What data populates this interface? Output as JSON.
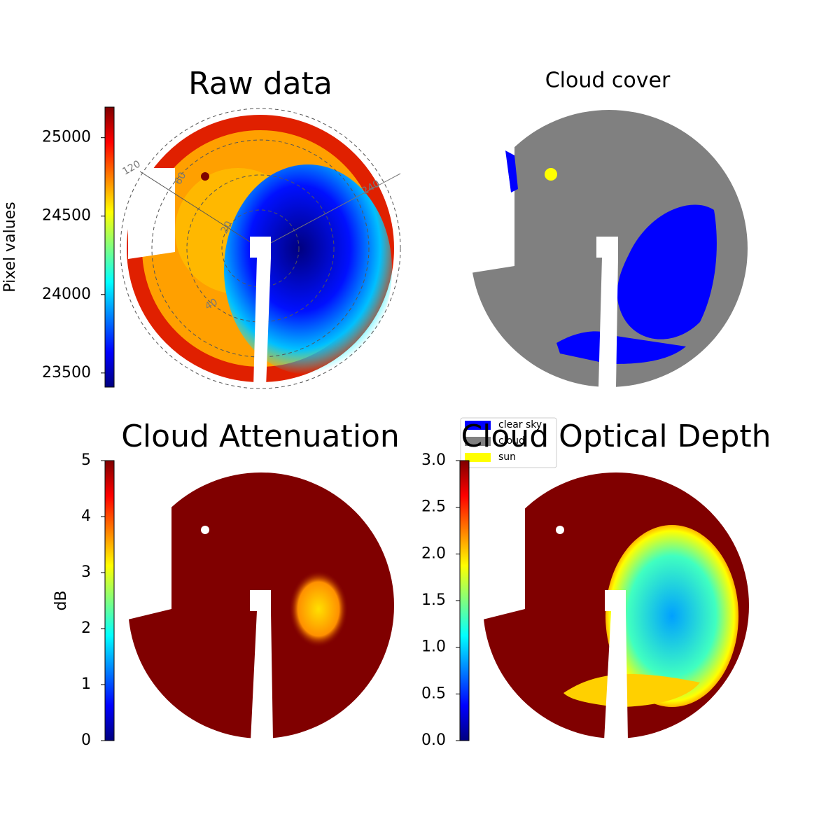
{
  "chart_data": [
    {
      "type": "image",
      "title": "Raw data",
      "colorbar_label": "Pixel values",
      "colormap": "jet",
      "clim": [
        23410,
        25195
      ],
      "cticks": [
        23500,
        24000,
        24500,
        25000
      ],
      "annotations": [
        "120",
        "60",
        "20",
        "40",
        "240"
      ]
    },
    {
      "type": "image",
      "title": "Cloud cover",
      "legend": "lower left",
      "series": [
        {
          "name": "clear sky",
          "color": "#0000ff"
        },
        {
          "name": "cloud",
          "color": "#808080"
        },
        {
          "name": "sun",
          "color": "#ffff00"
        }
      ]
    },
    {
      "type": "image",
      "title": "Cloud Attenuation",
      "colorbar_label": "dB",
      "colormap": "jet",
      "clim": [
        0,
        5
      ],
      "cticks": [
        0,
        1,
        2,
        3,
        4,
        5
      ]
    },
    {
      "type": "image",
      "title": "Cloud Optical Depth",
      "colormap": "jet",
      "clim": [
        0,
        3
      ],
      "cticks": [
        {
          "value": 0,
          "label": "0.0"
        },
        0.5,
        {
          "value": 1,
          "label": "1.0"
        },
        1.5,
        {
          "value": 2,
          "label": "2.0"
        },
        2.5,
        {
          "value": 3,
          "label": "3.0"
        }
      ]
    }
  ]
}
